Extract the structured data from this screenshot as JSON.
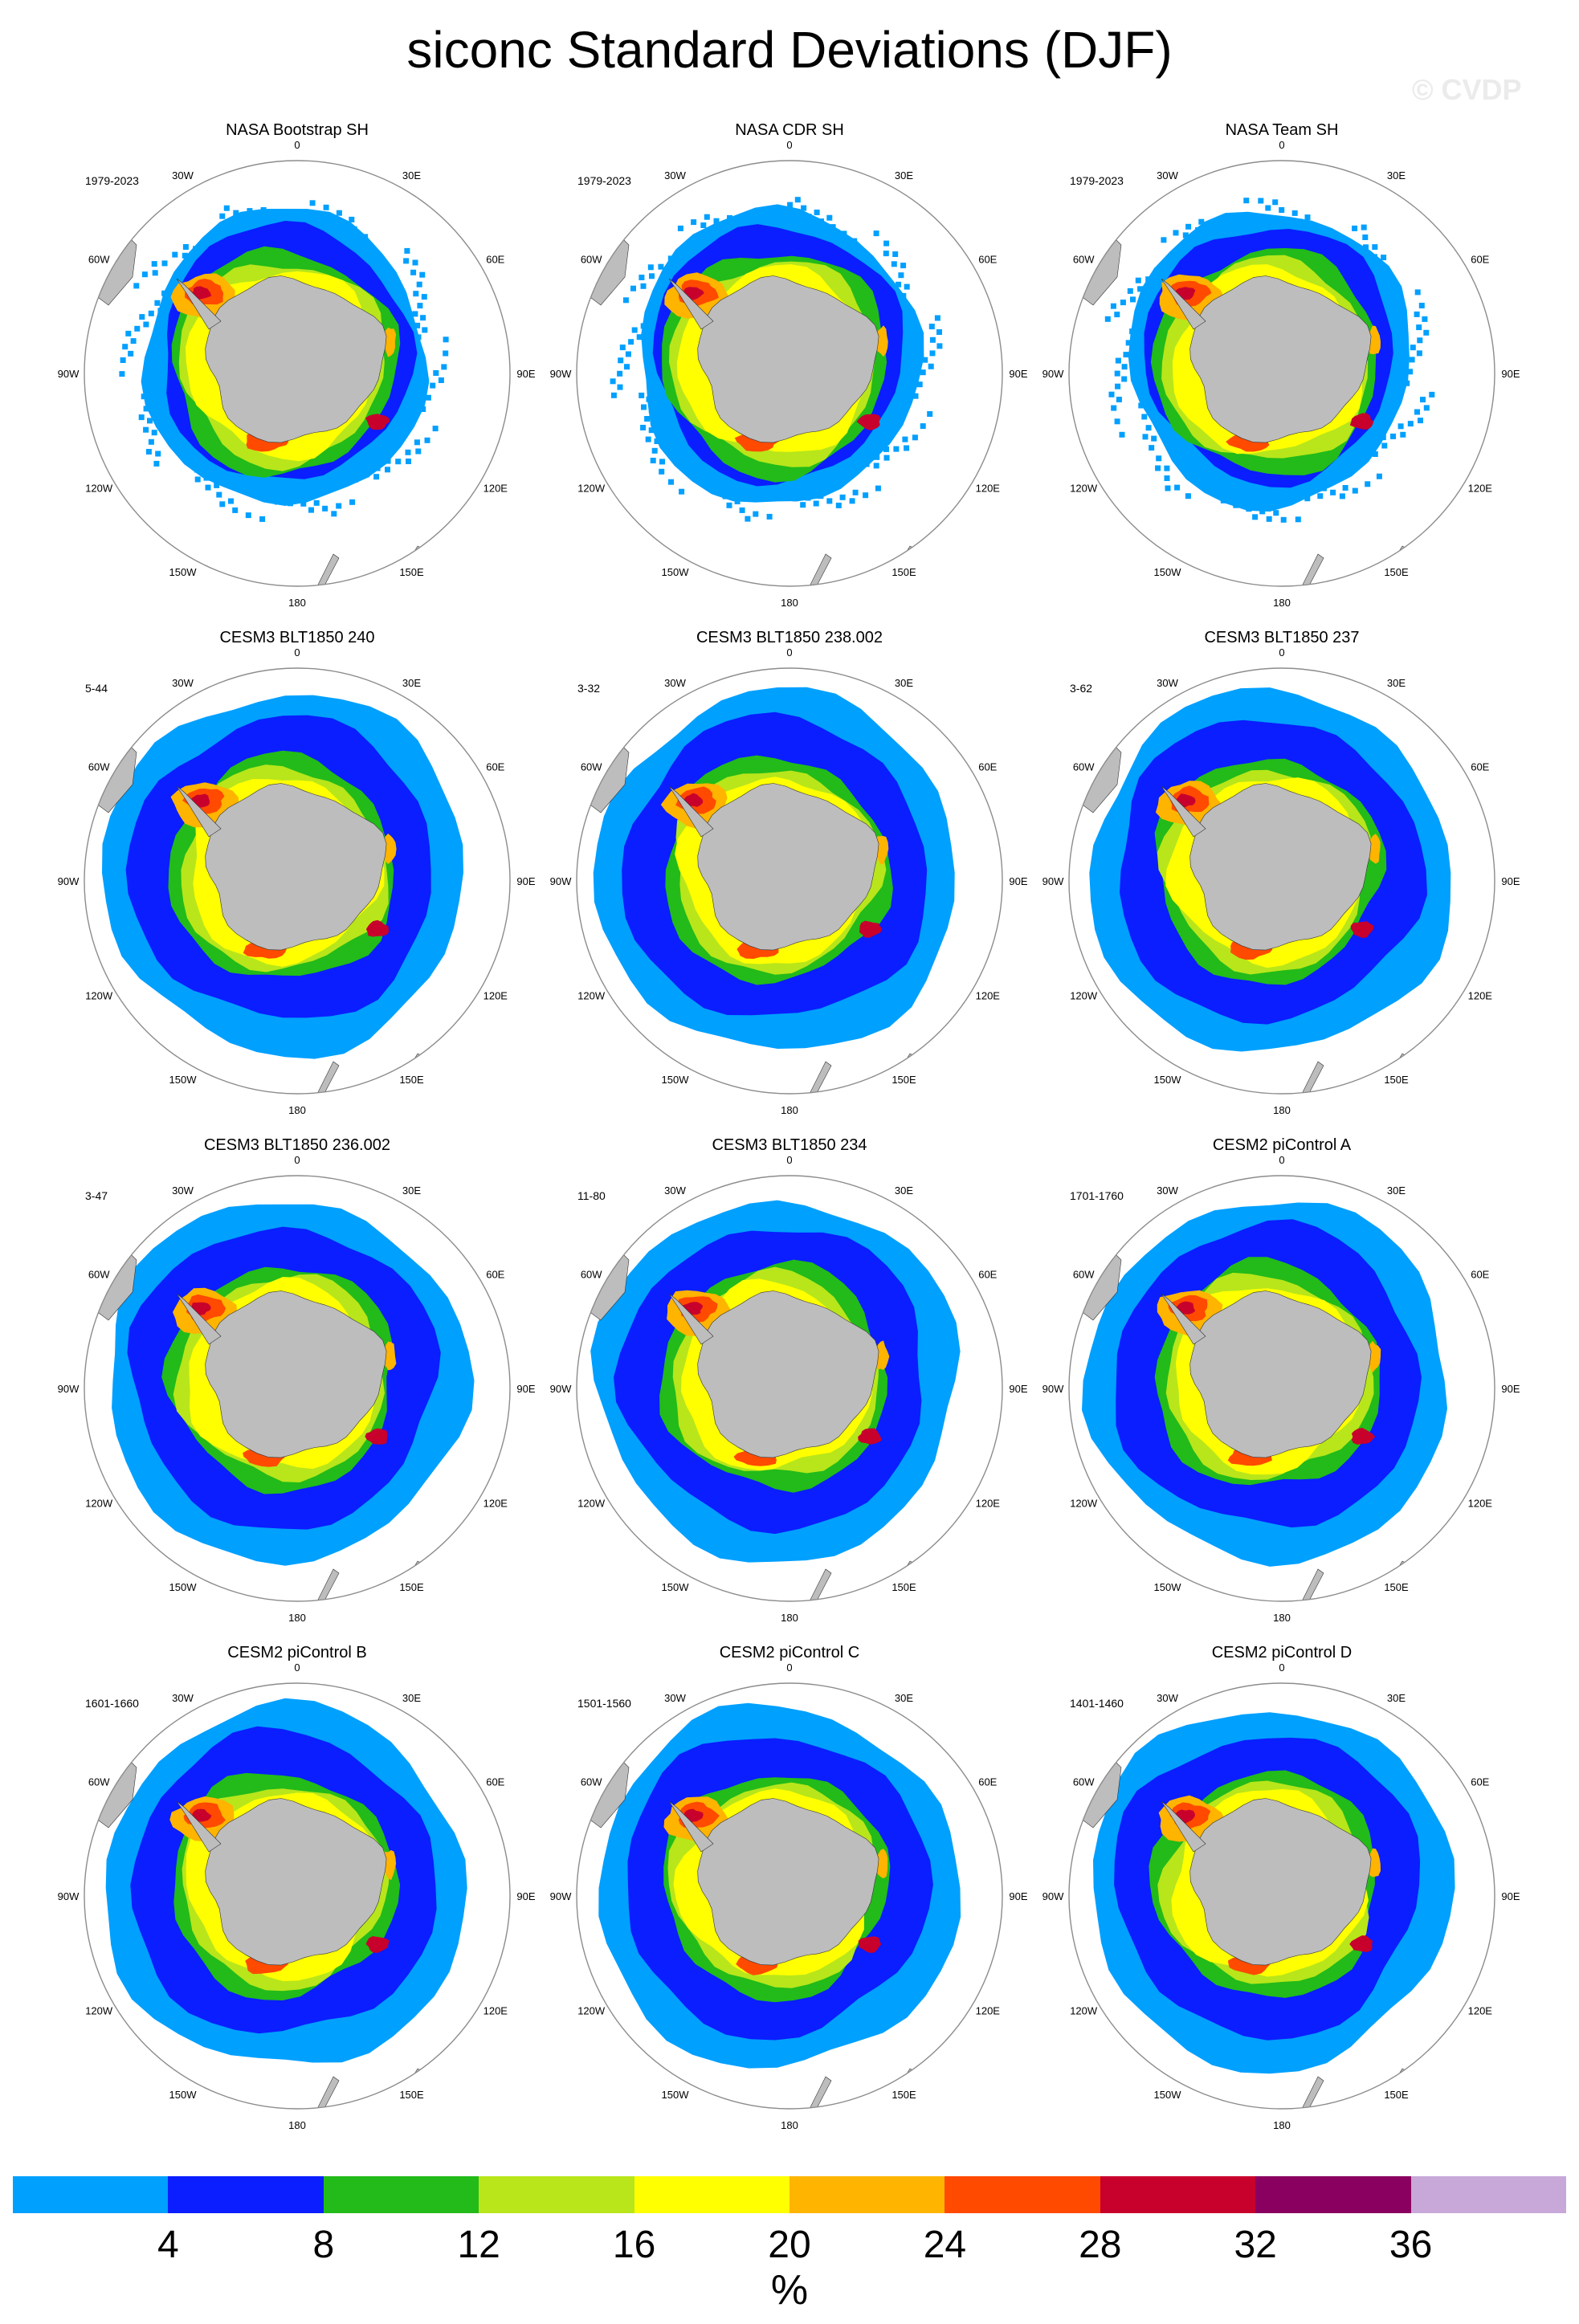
{
  "title": "siconc Standard Deviations (DJF)",
  "credit": "© CVDP",
  "map_labels": {
    "lon_ticks": [
      "0",
      "30E",
      "60E",
      "90E",
      "120E",
      "150E",
      "180",
      "150W",
      "120W",
      "90W",
      "60W",
      "30W"
    ]
  },
  "panels": [
    {
      "title": "NASA Bootstrap SH",
      "dates": "1979-2023",
      "pattern": "obs"
    },
    {
      "title": "NASA CDR SH",
      "dates": "1979-2023",
      "pattern": "obs"
    },
    {
      "title": "NASA Team SH",
      "dates": "1979-2023",
      "pattern": "obs"
    },
    {
      "title": "CESM3 BLT1850 240",
      "dates": "5-44",
      "pattern": "model"
    },
    {
      "title": "CESM3 BLT1850 238.002",
      "dates": "3-32",
      "pattern": "model"
    },
    {
      "title": "CESM3 BLT1850 237",
      "dates": "3-62",
      "pattern": "model"
    },
    {
      "title": "CESM3 BLT1850 236.002",
      "dates": "3-47",
      "pattern": "model"
    },
    {
      "title": "CESM3 BLT1850 234",
      "dates": "11-80",
      "pattern": "model"
    },
    {
      "title": "CESM2 piControl A",
      "dates": "1701-1760",
      "pattern": "model"
    },
    {
      "title": "CESM2 piControl B",
      "dates": "1601-1660",
      "pattern": "model"
    },
    {
      "title": "CESM2 piControl C",
      "dates": "1501-1560",
      "pattern": "model"
    },
    {
      "title": "CESM2 piControl D",
      "dates": "1401-1460",
      "pattern": "model"
    }
  ],
  "colorbar": {
    "colors": [
      "#00a0ff",
      "#0a1eff",
      "#22bb19",
      "#b8e61a",
      "#ffff00",
      "#ffb400",
      "#ff4a00",
      "#c8002c",
      "#8a0060",
      "#c8a8d8"
    ],
    "ticks": [
      "4",
      "8",
      "12",
      "16",
      "20",
      "24",
      "28",
      "32",
      "36"
    ],
    "units": "%"
  },
  "land_color": "#bdbdbd"
}
